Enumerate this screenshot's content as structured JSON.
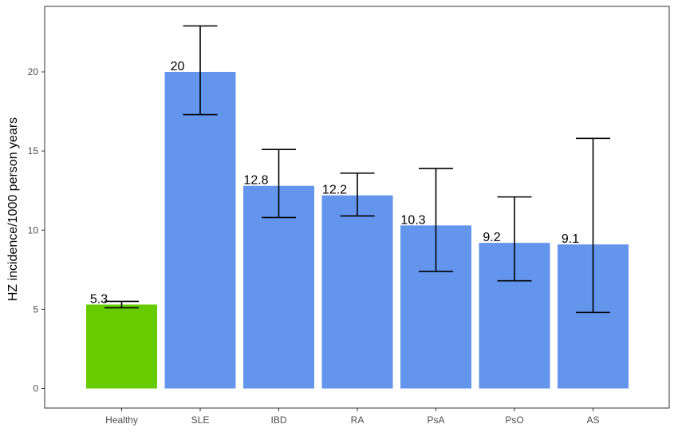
{
  "chart_data": {
    "type": "bar",
    "title": "",
    "xlabel": "",
    "ylabel": "HZ incidence/1000 person years",
    "ylim": [
      -1.0,
      23.9
    ],
    "yticks": [
      0,
      5,
      10,
      15,
      20
    ],
    "categories": [
      "Healthy",
      "SLE",
      "IBD",
      "RA",
      "PsA",
      "PsO",
      "AS"
    ],
    "values": [
      5.3,
      20,
      12.8,
      12.2,
      10.3,
      9.2,
      9.1
    ],
    "value_labels": [
      "5.3",
      "20",
      "12.8",
      "12.2",
      "10.3",
      "9.2",
      "9.1"
    ],
    "error_low": [
      5.1,
      17.3,
      10.8,
      10.9,
      7.4,
      6.8,
      4.8
    ],
    "error_high": [
      5.5,
      22.9,
      15.1,
      13.6,
      13.9,
      12.1,
      15.8
    ],
    "bar_colors": [
      "#66cc00",
      "#6495ed",
      "#6495ed",
      "#6495ed",
      "#6495ed",
      "#6495ed",
      "#6495ed"
    ],
    "grid": false,
    "legend": "none"
  }
}
